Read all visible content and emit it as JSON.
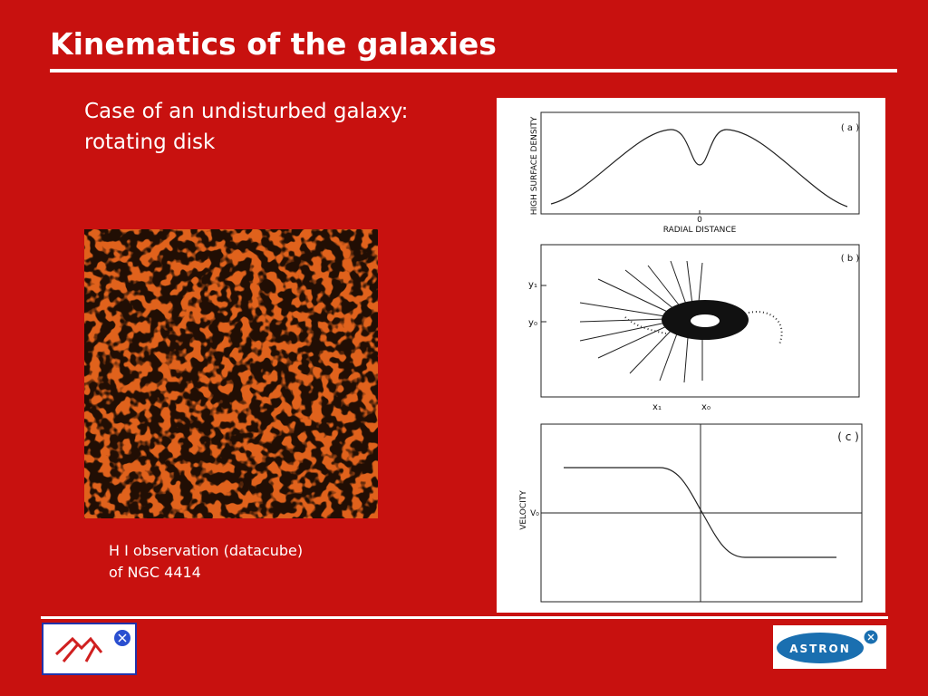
{
  "header": {
    "title": "Kinematics of the galaxies"
  },
  "intro": [
    "Case of an undisturbed galaxy:",
    "rotating disk"
  ],
  "caption": [
    "H I observation (datacube)",
    "of NGC 4414"
  ],
  "figure": {
    "panel_a": {
      "label": "( a )",
      "y_label": "HIGH SURFACE DENSITY",
      "x_label": "RADIAL DISTANCE",
      "x_tick": "0"
    },
    "panel_b": {
      "label": "( b )",
      "y_ticks": [
        "y₁",
        "y₀"
      ],
      "x_ticks": [
        "x₁",
        "x₀"
      ]
    },
    "panel_c": {
      "label": "( c )",
      "y_label": "VELOCITY",
      "y_tick": "V₀"
    }
  },
  "logos": {
    "right": "ASTRON"
  }
}
